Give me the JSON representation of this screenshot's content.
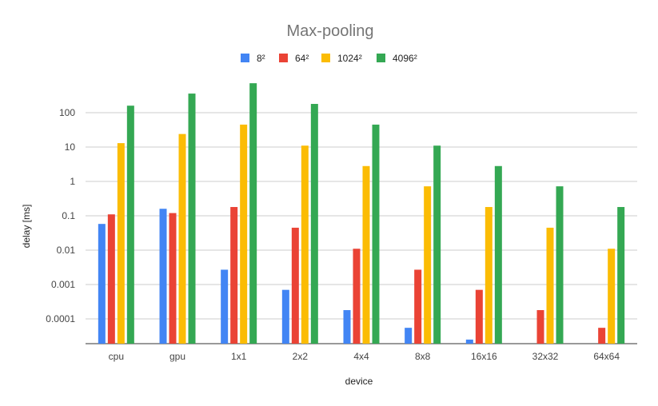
{
  "chart_data": {
    "type": "bar",
    "title": "Max-pooling",
    "xlabel": "device",
    "ylabel": "delay [ms]",
    "y_scale": "log",
    "ylim": [
      2e-05,
      1000
    ],
    "yticks": [
      0.0001,
      0.001,
      0.01,
      0.1,
      1,
      10,
      100
    ],
    "ytick_labels": [
      "0.0001",
      "0.001",
      "0.01",
      "0.1",
      "1",
      "10",
      "100"
    ],
    "grid": true,
    "legend_position": "top-center",
    "categories": [
      "cpu",
      "gpu",
      "1x1",
      "2x2",
      "4x4",
      "8x8",
      "16x16",
      "32x32",
      "64x64"
    ],
    "series": [
      {
        "name": "8²",
        "color": "#4285f4",
        "values": [
          0.058,
          0.16,
          0.0027,
          0.0007,
          0.00018,
          5.5e-05,
          2.5e-05,
          null,
          null
        ]
      },
      {
        "name": "64²",
        "color": "#ea4335",
        "values": [
          0.11,
          0.12,
          0.18,
          0.045,
          0.011,
          0.0027,
          0.0007,
          0.00018,
          5.5e-05
        ]
      },
      {
        "name": "1024²",
        "color": "#fbbc04",
        "values": [
          13,
          24,
          45,
          11,
          2.8,
          0.72,
          0.18,
          0.045,
          0.011
        ]
      },
      {
        "name": "4096²",
        "color": "#34a853",
        "values": [
          160,
          360,
          720,
          180,
          45,
          11,
          2.8,
          0.72,
          0.18
        ]
      }
    ]
  }
}
